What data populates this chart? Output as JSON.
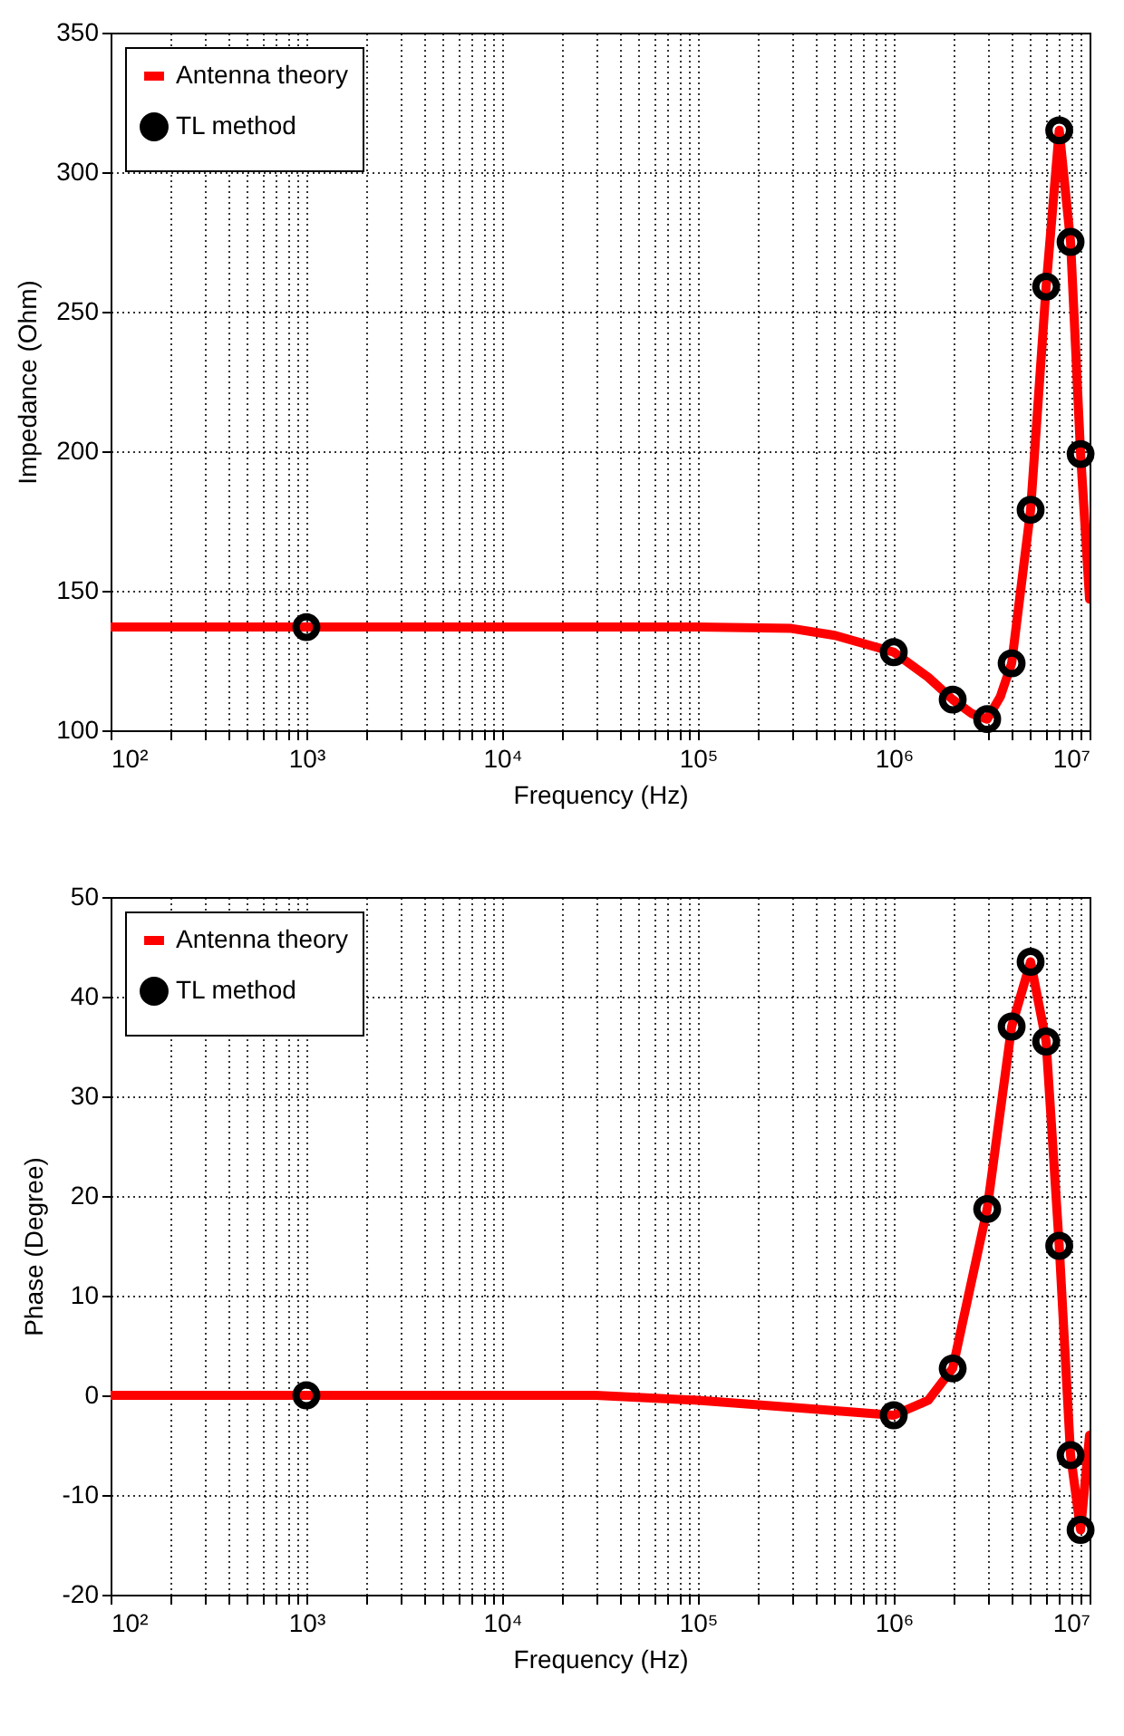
{
  "chart_data": [
    {
      "type": "line",
      "xlabel": "Frequency (Hz)",
      "ylabel": "Impedance (Ohm)",
      "log": "x",
      "grid": true,
      "legend": "top left",
      "xlim": [
        100,
        10000000
      ],
      "ylim": [
        100,
        350
      ],
      "xticks": [
        {
          "value": 100,
          "label": "10²"
        },
        {
          "value": 200,
          "label": null
        },
        {
          "value": 300,
          "label": null
        },
        {
          "value": 400,
          "label": null
        },
        {
          "value": 500,
          "label": null
        },
        {
          "value": 600,
          "label": null
        },
        {
          "value": 700,
          "label": null
        },
        {
          "value": 800,
          "label": null
        },
        {
          "value": 900,
          "label": null
        },
        {
          "value": 1000,
          "label": "10³"
        },
        {
          "value": 2000,
          "label": null
        },
        {
          "value": 3000,
          "label": null
        },
        {
          "value": 4000,
          "label": null
        },
        {
          "value": 5000,
          "label": null
        },
        {
          "value": 6000,
          "label": null
        },
        {
          "value": 7000,
          "label": null
        },
        {
          "value": 8000,
          "label": null
        },
        {
          "value": 9000,
          "label": null
        },
        {
          "value": 10000,
          "label": "10⁴"
        },
        {
          "value": 20000,
          "label": null
        },
        {
          "value": 30000,
          "label": null
        },
        {
          "value": 40000,
          "label": null
        },
        {
          "value": 50000,
          "label": null
        },
        {
          "value": 60000,
          "label": null
        },
        {
          "value": 70000,
          "label": null
        },
        {
          "value": 80000,
          "label": null
        },
        {
          "value": 90000,
          "label": null
        },
        {
          "value": 100000,
          "label": "10⁵"
        },
        {
          "value": 200000,
          "label": null
        },
        {
          "value": 300000,
          "label": null
        },
        {
          "value": 400000,
          "label": null
        },
        {
          "value": 500000,
          "label": null
        },
        {
          "value": 600000,
          "label": null
        },
        {
          "value": 700000,
          "label": null
        },
        {
          "value": 800000,
          "label": null
        },
        {
          "value": 900000,
          "label": null
        },
        {
          "value": 1000000,
          "label": "10⁶"
        },
        {
          "value": 2000000,
          "label": null
        },
        {
          "value": 3000000,
          "label": null
        },
        {
          "value": 4000000,
          "label": null
        },
        {
          "value": 5000000,
          "label": null
        },
        {
          "value": 6000000,
          "label": null
        },
        {
          "value": 7000000,
          "label": null
        },
        {
          "value": 8000000,
          "label": null
        },
        {
          "value": 9000000,
          "label": null
        },
        {
          "value": 10000000,
          "label": "10⁷"
        }
      ],
      "yticks": [
        100,
        150,
        200,
        250,
        300,
        350
      ],
      "series": [
        {
          "name": "Antenna theory",
          "type": "line",
          "color": "#ff0000",
          "line_style": "solid",
          "x": [
            100,
            1000,
            10000,
            100000,
            300000,
            500000,
            1000000,
            1500000,
            2000000,
            2500000,
            3000000,
            3500000,
            4000000,
            5000000,
            6000000,
            7000000,
            8000000,
            9000000,
            10000000
          ],
          "values": [
            137,
            137,
            137,
            137,
            136.5,
            134,
            128,
            119,
            111,
            106,
            104,
            112,
            124,
            179,
            259,
            315,
            275,
            199,
            147
          ]
        },
        {
          "name": "TL method",
          "type": "scatter",
          "color": "#000000",
          "marker": "circle",
          "x": [
            1000,
            1000000,
            2000000,
            3000000,
            4000000,
            5000000,
            6000000,
            7000000,
            8000000,
            9000000
          ],
          "values": [
            137,
            128,
            111,
            104,
            124,
            179,
            259,
            315,
            275,
            199
          ]
        }
      ]
    },
    {
      "type": "line",
      "xlabel": "Frequency (Hz)",
      "ylabel": "Phase (Degree)",
      "log": "x",
      "grid": true,
      "legend": "top left",
      "xlim": [
        100,
        10000000
      ],
      "ylim": [
        -20,
        50
      ],
      "xticks": [
        {
          "value": 100,
          "label": "10²"
        },
        {
          "value": 200,
          "label": null
        },
        {
          "value": 300,
          "label": null
        },
        {
          "value": 400,
          "label": null
        },
        {
          "value": 500,
          "label": null
        },
        {
          "value": 600,
          "label": null
        },
        {
          "value": 700,
          "label": null
        },
        {
          "value": 800,
          "label": null
        },
        {
          "value": 900,
          "label": null
        },
        {
          "value": 1000,
          "label": "10³"
        },
        {
          "value": 2000,
          "label": null
        },
        {
          "value": 3000,
          "label": null
        },
        {
          "value": 4000,
          "label": null
        },
        {
          "value": 5000,
          "label": null
        },
        {
          "value": 6000,
          "label": null
        },
        {
          "value": 7000,
          "label": null
        },
        {
          "value": 8000,
          "label": null
        },
        {
          "value": 9000,
          "label": null
        },
        {
          "value": 10000,
          "label": "10⁴"
        },
        {
          "value": 20000,
          "label": null
        },
        {
          "value": 30000,
          "label": null
        },
        {
          "value": 40000,
          "label": null
        },
        {
          "value": 50000,
          "label": null
        },
        {
          "value": 60000,
          "label": null
        },
        {
          "value": 70000,
          "label": null
        },
        {
          "value": 80000,
          "label": null
        },
        {
          "value": 90000,
          "label": null
        },
        {
          "value": 100000,
          "label": "10⁵"
        },
        {
          "value": 200000,
          "label": null
        },
        {
          "value": 300000,
          "label": null
        },
        {
          "value": 400000,
          "label": null
        },
        {
          "value": 500000,
          "label": null
        },
        {
          "value": 600000,
          "label": null
        },
        {
          "value": 700000,
          "label": null
        },
        {
          "value": 800000,
          "label": null
        },
        {
          "value": 900000,
          "label": null
        },
        {
          "value": 1000000,
          "label": "10⁶"
        },
        {
          "value": 2000000,
          "label": null
        },
        {
          "value": 3000000,
          "label": null
        },
        {
          "value": 4000000,
          "label": null
        },
        {
          "value": 5000000,
          "label": null
        },
        {
          "value": 6000000,
          "label": null
        },
        {
          "value": 7000000,
          "label": null
        },
        {
          "value": 8000000,
          "label": null
        },
        {
          "value": 9000000,
          "label": null
        },
        {
          "value": 10000000,
          "label": "10⁷"
        }
      ],
      "yticks": [
        -20,
        -10,
        0,
        10,
        20,
        30,
        40,
        50
      ],
      "series": [
        {
          "name": "Antenna theory",
          "type": "line",
          "color": "#ff0000",
          "line_style": "solid",
          "x": [
            100,
            1000,
            10000,
            30000,
            100000,
            300000,
            1000000,
            1500000,
            2000000,
            3000000,
            4000000,
            5000000,
            6000000,
            7000000,
            8000000,
            9000000,
            10000000
          ],
          "values": [
            0,
            0,
            0,
            0,
            -0.5,
            -1.2,
            -2,
            -0.5,
            2.7,
            18.7,
            37,
            43.5,
            35.5,
            15,
            -6,
            -13.5,
            -4
          ]
        },
        {
          "name": "TL method",
          "type": "scatter",
          "color": "#000000",
          "marker": "circle",
          "x": [
            1000,
            1000000,
            2000000,
            3000000,
            4000000,
            5000000,
            6000000,
            7000000,
            8000000,
            9000000
          ],
          "values": [
            0,
            -2,
            2.7,
            18.7,
            37,
            43.5,
            35.5,
            15,
            -6,
            -13.5
          ]
        }
      ]
    }
  ]
}
